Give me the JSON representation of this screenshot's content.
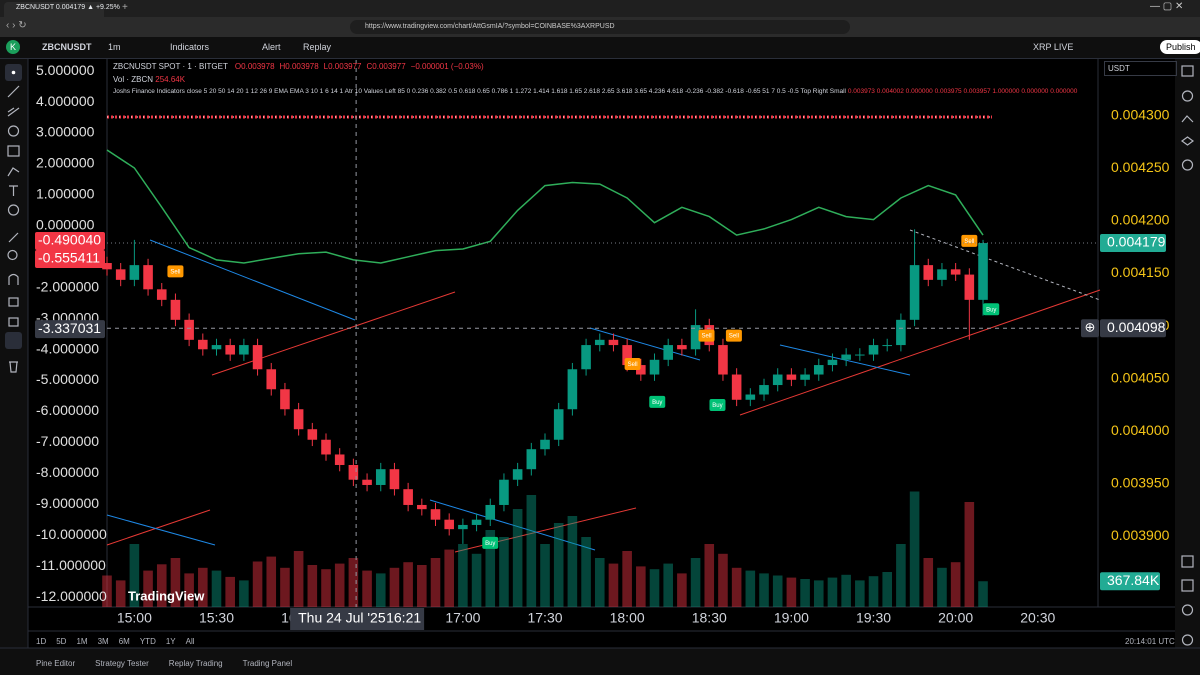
{
  "browser": {
    "tab_title": "ZBCNUSDT 0.004179 ▲ +9.25%",
    "url": "https://www.tradingview.com/chart/AttGsmIA/?symbol=COINBASE%3AXRPUSD"
  },
  "toolbar": {
    "symbol": "ZBCNUSDT",
    "interval": "1m",
    "indicators": "Indicators",
    "alert": "Alert",
    "replay": "Replay",
    "account": "XRP LIVE",
    "publish": "Publish",
    "currency": "USDT"
  },
  "legend": {
    "title": "ZBCNUSDT SPOT · 1 · BITGET",
    "ohlc": [
      "O0.003978",
      "H0.003978",
      "L0.003977",
      "C0.003977",
      "−0.000001 (−0.03%)"
    ],
    "volume_name": "Vol · ZBCN",
    "volume_value": "254.64K",
    "indicator": "Joshs Finance Indicators close 5 20 50 14 20 1 12 26 9 EMA EMA 3 10 1 6 14 1 Atr 10 Values Left 85 0 0.236 0.382 0.5 0.618 0.65 0.786 1 1.272 1.414 1.618 1.65 2.618 2.65 3.618 3.65 4.236 4.618 -0.236 -0.382 -0.618 -0.65 51 7 0.5 -0.5 Top Right Small",
    "indicator_values": "0.003973  0.004002  0.000000  0.003975  0.003957  1.000000  0.000000  0.000000"
  },
  "chart_data": {
    "type": "candlestick",
    "title": "ZBCNUSDT SPOT · 1 · BITGET",
    "x": [
      "14:50",
      "14:55",
      "15:00",
      "15:05",
      "15:10",
      "15:15",
      "15:20",
      "15:25",
      "15:30",
      "15:35",
      "15:40",
      "15:45",
      "15:50",
      "15:55",
      "16:00",
      "16:05",
      "16:10",
      "16:15",
      "16:20",
      "16:25",
      "16:30",
      "16:35",
      "16:40",
      "16:45",
      "16:50",
      "16:55",
      "17:00",
      "17:05",
      "17:10",
      "17:15",
      "17:20",
      "17:25",
      "17:30",
      "17:35",
      "17:40",
      "17:45",
      "17:50",
      "17:55",
      "18:00",
      "18:05",
      "18:10",
      "18:15",
      "18:20",
      "18:25",
      "18:30",
      "18:35",
      "18:40",
      "18:45",
      "18:50",
      "18:55",
      "19:00",
      "19:05",
      "19:10",
      "19:15",
      "19:20",
      "19:25",
      "19:30",
      "19:35",
      "19:40",
      "19:45",
      "19:50",
      "19:55",
      "20:00",
      "20:05",
      "20:10"
    ],
    "open": [
      0.00416,
      0.004154,
      0.004144,
      0.004158,
      0.004135,
      0.004125,
      0.004106,
      0.004087,
      0.004078,
      0.004082,
      0.004073,
      0.004082,
      0.004059,
      0.00404,
      0.004021,
      0.004002,
      0.003992,
      0.003978,
      0.003968,
      0.003954,
      0.003949,
      0.003964,
      0.003945,
      0.00393,
      0.003926,
      0.003916,
      0.003907,
      0.003911,
      0.003916,
      0.00393,
      0.003954,
      0.003964,
      0.003983,
      0.003992,
      0.004021,
      0.004059,
      0.004082,
      0.004087,
      0.004082,
      0.004063,
      0.004054,
      0.004068,
      0.004082,
      0.004078,
      0.004101,
      0.004082,
      0.004054,
      0.00403,
      0.004035,
      0.004044,
      0.004054,
      0.004049,
      0.004054,
      0.004063,
      0.004068,
      0.004073,
      0.004073,
      0.004082,
      0.004082,
      0.004106,
      0.004158,
      0.004144,
      0.004154,
      0.004149,
      0.004125
    ],
    "high": [
      0.004166,
      0.00416,
      0.004182,
      0.004164,
      0.004141,
      0.004131,
      0.004112,
      0.004093,
      0.004088,
      0.004088,
      0.004088,
      0.004088,
      0.004065,
      0.004046,
      0.004027,
      0.004008,
      0.003998,
      0.003984,
      0.003974,
      0.00396,
      0.00397,
      0.00397,
      0.003951,
      0.003936,
      0.003932,
      0.003922,
      0.003917,
      0.003922,
      0.003936,
      0.00396,
      0.00397,
      0.003989,
      0.003998,
      0.004027,
      0.004065,
      0.004088,
      0.004093,
      0.004093,
      0.004088,
      0.004069,
      0.004074,
      0.004088,
      0.004088,
      0.004116,
      0.004107,
      0.004088,
      0.00406,
      0.004041,
      0.00405,
      0.00406,
      0.00406,
      0.00406,
      0.004069,
      0.004074,
      0.004079,
      0.004079,
      0.004088,
      0.004088,
      0.004112,
      0.004192,
      0.004164,
      0.00416,
      0.00416,
      0.004155,
      0.004182
    ],
    "low": [
      0.004148,
      0.004138,
      0.004138,
      0.004129,
      0.004119,
      0.0041,
      0.004081,
      0.004072,
      0.004072,
      0.004067,
      0.004067,
      0.004053,
      0.004034,
      0.004015,
      0.003996,
      0.003986,
      0.003972,
      0.003962,
      0.003948,
      0.003943,
      0.003943,
      0.003939,
      0.003924,
      0.00392,
      0.00391,
      0.003901,
      0.003893,
      0.003905,
      0.00391,
      0.003924,
      0.003948,
      0.003958,
      0.003977,
      0.003986,
      0.004015,
      0.004053,
      0.004076,
      0.004076,
      0.004057,
      0.004048,
      0.004048,
      0.004062,
      0.004072,
      0.004072,
      0.004076,
      0.004048,
      0.004024,
      0.004024,
      0.004029,
      0.004038,
      0.004043,
      0.004043,
      0.004048,
      0.004057,
      0.004062,
      0.004067,
      0.004067,
      0.004076,
      0.004076,
      0.0041,
      0.004138,
      0.004138,
      0.004143,
      0.004087,
      0.00411
    ],
    "close": [
      0.004154,
      0.004144,
      0.004158,
      0.004135,
      0.004125,
      0.004106,
      0.004087,
      0.004078,
      0.004082,
      0.004073,
      0.004082,
      0.004059,
      0.00404,
      0.004021,
      0.004002,
      0.003992,
      0.003978,
      0.003968,
      0.003954,
      0.003949,
      0.003964,
      0.003945,
      0.00393,
      0.003926,
      0.003916,
      0.003907,
      0.003911,
      0.003916,
      0.00393,
      0.003954,
      0.003964,
      0.003983,
      0.003992,
      0.004021,
      0.004059,
      0.004082,
      0.004087,
      0.004082,
      0.004063,
      0.004054,
      0.004068,
      0.004082,
      0.004078,
      0.004101,
      0.004082,
      0.004054,
      0.00403,
      0.004035,
      0.004044,
      0.004054,
      0.004049,
      0.004054,
      0.004063,
      0.004068,
      0.004073,
      0.004073,
      0.004082,
      0.004082,
      0.004106,
      0.004158,
      0.004144,
      0.004154,
      0.004149,
      0.004125,
      0.004179
    ],
    "volume": [
      450000,
      380000,
      900000,
      520000,
      610000,
      700000,
      480000,
      560000,
      520000,
      430000,
      380000,
      650000,
      720000,
      560000,
      800000,
      600000,
      540000,
      620000,
      700000,
      520000,
      480000,
      560000,
      640000,
      600000,
      700000,
      820000,
      900000,
      760000,
      1100000,
      1000000,
      1400000,
      1600000,
      900000,
      1200000,
      1300000,
      1000000,
      700000,
      620000,
      800000,
      580000,
      540000,
      620000,
      480000,
      700000,
      900000,
      760000,
      560000,
      520000,
      480000,
      450000,
      420000,
      400000,
      380000,
      420000,
      460000,
      380000,
      440000,
      500000,
      900000,
      1650000,
      700000,
      560000,
      640000,
      1500000,
      367840
    ],
    "volume_last_label": "367.84K",
    "volume_ylim": [
      0,
      2000000
    ],
    "up_color": "#089981",
    "down_color": "#f23645",
    "xlim": [
      "14:50",
      "20:52"
    ],
    "xticks": [
      "15:00",
      "15:30",
      "16:00",
      "16:30",
      "17:00",
      "17:30",
      "18:00",
      "18:30",
      "19:00",
      "19:30",
      "20:00",
      "20:30"
    ],
    "ylim": [
      0.003833,
      0.004353
    ],
    "yticks": [
      {
        "value": 0.0039,
        "label": "0.003900"
      },
      {
        "value": 0.00395,
        "label": "0.003950"
      },
      {
        "value": 0.004,
        "label": "0.004000"
      },
      {
        "value": 0.00405,
        "label": "0.004050"
      },
      {
        "value": 0.0041,
        "label": "0.004100"
      },
      {
        "value": 0.00415,
        "label": "0.004150"
      },
      {
        "value": 0.0042,
        "label": "0.004200"
      },
      {
        "value": 0.00425,
        "label": "0.004250"
      },
      {
        "value": 0.0043,
        "label": "0.004300"
      }
    ],
    "current_price": {
      "value": 0.004179,
      "label": "0.004179"
    },
    "y2lim": [
      -12.32,
      5.36
    ],
    "y2ticks": [
      {
        "value": 5,
        "label": "5.000000"
      },
      {
        "value": 4,
        "label": "4.000000"
      },
      {
        "value": 3,
        "label": "3.000000"
      },
      {
        "value": 2,
        "label": "2.000000"
      },
      {
        "value": 1,
        "label": "1.000000"
      },
      {
        "value": 0,
        "label": "0.000000"
      },
      {
        "value": -1,
        "label": "-1.000000"
      },
      {
        "value": -2,
        "label": "-2.000000"
      },
      {
        "value": -3,
        "label": "-3.000000"
      },
      {
        "value": -4,
        "label": "-4.000000"
      },
      {
        "value": -5,
        "label": "-5.000000"
      },
      {
        "value": -6,
        "label": "-6.000000"
      },
      {
        "value": -7,
        "label": "-7.000000"
      },
      {
        "value": -8,
        "label": "-8.000000"
      },
      {
        "value": -9,
        "label": "-9.000000"
      },
      {
        "value": -10,
        "label": "-10.000000"
      },
      {
        "value": -11,
        "label": "-11.000000"
      },
      {
        "value": -12,
        "label": "-12.000000"
      }
    ],
    "y2_labels": [
      {
        "value": -0.49004,
        "label": "-0.490040"
      },
      {
        "value": -0.555411,
        "label": "-0.555411"
      }
    ],
    "series": [
      {
        "axis": "y2",
        "color": "#2fae5a",
        "x": [
          "14:50",
          "15:00",
          "15:10",
          "15:20",
          "15:30",
          "15:40",
          "15:50",
          "16:00",
          "16:10",
          "16:20",
          "16:30",
          "16:40",
          "16:50",
          "17:00",
          "17:10",
          "17:20",
          "17:30",
          "17:40",
          "17:50",
          "18:00",
          "18:10",
          "18:20",
          "18:30",
          "18:40",
          "18:50",
          "19:00",
          "19:10",
          "19:20",
          "19:30",
          "19:40",
          "19:50",
          "20:00",
          "20:10"
        ],
        "values": [
          2.45,
          1.87,
          0.6,
          -0.7,
          -1.1,
          -1.2,
          -1.05,
          -0.9,
          -0.85,
          -1.1,
          -1.2,
          -1.0,
          -0.8,
          -0.75,
          -0.5,
          0.5,
          1.3,
          1.4,
          1.35,
          0.9,
          0.1,
          0.6,
          0.3,
          -0.3,
          -0.1,
          0.2,
          0.6,
          0.3,
          0.2,
          0.9,
          1.3,
          1.0,
          -0.3
        ]
      }
    ],
    "signals": [
      {
        "x": "15:15",
        "price": 0.004152,
        "label": "Sell",
        "color": "#ff9800"
      },
      {
        "x": "17:10",
        "price": 0.003894,
        "label": "Buy",
        "color": "#00c176"
      },
      {
        "x": "18:02",
        "price": 0.004064,
        "label": "Sell",
        "color": "#ff9800"
      },
      {
        "x": "18:11",
        "price": 0.004028,
        "label": "Buy",
        "color": "#00c176"
      },
      {
        "x": "18:29",
        "price": 0.004091,
        "label": "Sell",
        "color": "#ff9800"
      },
      {
        "x": "18:33",
        "price": 0.004025,
        "label": "Buy",
        "color": "#00c176"
      },
      {
        "x": "18:39",
        "price": 0.004091,
        "label": "Sell",
        "color": "#ff9800"
      },
      {
        "x": "20:05",
        "price": 0.004181,
        "label": "Sell",
        "color": "#ff9800"
      },
      {
        "x": "20:13",
        "price": 0.004116,
        "label": "Buy",
        "color": "#00c176"
      }
    ],
    "crosshair": {
      "date": "Thu 24 Jul '25",
      "time": "16:21",
      "price": {
        "value": 0.004098,
        "label": "0.004098"
      },
      "left": {
        "value": -3.337031,
        "label": "-3.337031"
      }
    },
    "grid": false,
    "watermark": "TradingView"
  },
  "footer": {
    "ranges": [
      "1D",
      "5D",
      "1M",
      "3M",
      "6M",
      "YTD",
      "1Y",
      "All"
    ],
    "clock": "20:14:01 UTC",
    "tabs": [
      "Pine Editor",
      "Strategy Tester",
      "Replay Trading",
      "Trading Panel"
    ]
  }
}
